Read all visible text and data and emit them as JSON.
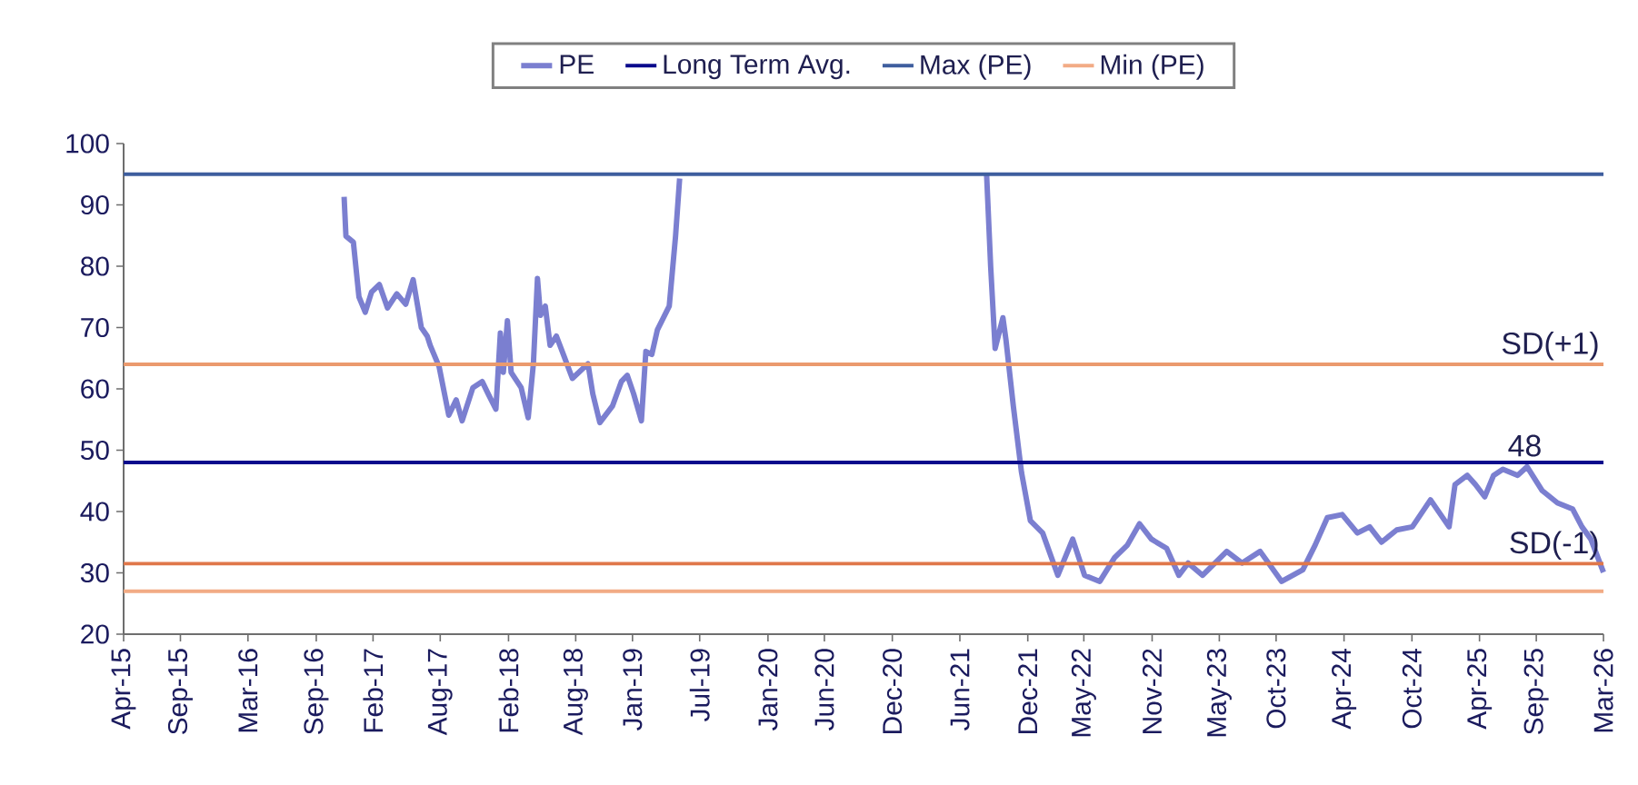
{
  "chart_data": {
    "type": "line",
    "legend": "top",
    "xlim": [
      "2015-04-01",
      "2026-03-01"
    ],
    "ylim": [
      20,
      100
    ],
    "yticks": [
      20,
      30,
      40,
      50,
      60,
      70,
      80,
      90,
      100
    ],
    "xticks": [
      {
        "value": "2015-04-01",
        "label": "Apr-15"
      },
      {
        "value": "2015-09-01",
        "label": "Sep-15"
      },
      {
        "value": "2016-03-01",
        "label": "Mar-16"
      },
      {
        "value": "2016-09-01",
        "label": "Sep-16"
      },
      {
        "value": "2017-02-01",
        "label": "Feb-17"
      },
      {
        "value": "2017-08-01",
        "label": "Aug-17"
      },
      {
        "value": "2018-02-01",
        "label": "Feb-18"
      },
      {
        "value": "2018-08-01",
        "label": "Aug-18"
      },
      {
        "value": "2019-01-01",
        "label": "Jan-19"
      },
      {
        "value": "2019-07-01",
        "label": "Jul-19"
      },
      {
        "value": "2020-01-01",
        "label": "Jan-20"
      },
      {
        "value": "2020-06-01",
        "label": "Jun-20"
      },
      {
        "value": "2020-12-01",
        "label": "Dec-20"
      },
      {
        "value": "2021-06-01",
        "label": "Jun-21"
      },
      {
        "value": "2021-12-01",
        "label": "Dec-21"
      },
      {
        "value": "2022-05-01",
        "label": "May-22"
      },
      {
        "value": "2022-11-01",
        "label": "Nov-22"
      },
      {
        "value": "2023-05-01",
        "label": "May-23"
      },
      {
        "value": "2023-10-01",
        "label": "Oct-23"
      },
      {
        "value": "2024-04-01",
        "label": "Apr-24"
      },
      {
        "value": "2024-10-01",
        "label": "Oct-24"
      },
      {
        "value": "2025-04-01",
        "label": "Apr-25"
      },
      {
        "value": "2025-09-01",
        "label": "Sep-25"
      },
      {
        "value": "2026-03-01",
        "label": "Mar-26"
      }
    ],
    "series": [
      {
        "name": "PE",
        "color": "#7b7fd0",
        "x": [
          "2016-11-15",
          "2016-11-20",
          "2016-12-10",
          "2016-12-25",
          "2017-01-11",
          "2017-01-28",
          "2017-02-18",
          "2017-03-12",
          "2017-04-06",
          "2017-04-30",
          "2017-05-20",
          "2017-06-11",
          "2017-06-27",
          "2017-07-05",
          "2017-07-29",
          "2017-08-24",
          "2017-09-13",
          "2017-09-29",
          "2017-10-28",
          "2017-11-22",
          "2017-12-08",
          "2017-12-29",
          "2018-01-10",
          "2018-01-18",
          "2018-01-29",
          "2018-02-08",
          "2018-03-07",
          "2018-03-26",
          "2018-04-09",
          "2018-04-20",
          "2018-04-28",
          "2018-05-11",
          "2018-05-24",
          "2018-06-10",
          "2018-07-02",
          "2018-07-23",
          "2018-09-03",
          "2018-09-16",
          "2018-10-05",
          "2018-11-08",
          "2018-12-02",
          "2018-12-18",
          "2019-01-04",
          "2019-01-25",
          "2019-02-06",
          "2019-02-22",
          "2019-03-09",
          "2019-04-10",
          "2019-04-27",
          "2019-05-08",
          "2020-06-01",
          "2021-08-12",
          "2021-08-23",
          "2021-09-04",
          "2021-09-25",
          "2021-10-03",
          "2021-10-23",
          "2021-11-14",
          "2021-12-08",
          "2022-01-10",
          "2022-02-20",
          "2022-04-01",
          "2022-05-03",
          "2022-06-13",
          "2022-07-23",
          "2022-08-26",
          "2022-09-28",
          "2022-10-30",
          "2022-12-10",
          "2023-01-12",
          "2023-02-06",
          "2023-03-17",
          "2023-05-21",
          "2023-07-01",
          "2023-08-19",
          "2023-10-16",
          "2023-12-12",
          "2024-01-14",
          "2024-02-16",
          "2024-03-27",
          "2024-05-07",
          "2024-06-09",
          "2024-07-11",
          "2024-08-21",
          "2024-10-02",
          "2024-11-20",
          "2025-01-09",
          "2025-01-25",
          "2025-02-27",
          "2025-03-21",
          "2025-04-15",
          "2025-05-09",
          "2025-06-03",
          "2025-07-13",
          "2025-08-07",
          "2025-09-17",
          "2025-10-28",
          "2025-12-08",
          "2026-01-02",
          "2026-01-26",
          "2026-03-01"
        ],
        "values": [
          91.3,
          84.9,
          83.9,
          75,
          72.5,
          75.8,
          77,
          73.2,
          75.5,
          73.8,
          77.8,
          70,
          68.6,
          67.1,
          63.6,
          55.7,
          58.2,
          54.8,
          60.2,
          61.2,
          59.2,
          56.7,
          69.1,
          62.7,
          71.1,
          62.7,
          60.2,
          55.3,
          64.1,
          78,
          72,
          73.5,
          67.1,
          68.6,
          65.1,
          61.7,
          64.1,
          59.2,
          54.5,
          57.2,
          61.2,
          62.2,
          59.2,
          54.8,
          66.1,
          65.6,
          69.6,
          73.5,
          84.9,
          94.3,
          null,
          95,
          79.9,
          66.6,
          71.6,
          68.1,
          57.2,
          46.4,
          38.5,
          36.5,
          29.6,
          35.5,
          29.6,
          28.6,
          32.5,
          34.5,
          38,
          35.5,
          34,
          29.6,
          31.6,
          29.6,
          33.5,
          31.6,
          33.5,
          28.6,
          30.5,
          34.5,
          39,
          39.5,
          36.5,
          37.5,
          35,
          37,
          37.5,
          41.9,
          37.5,
          44.4,
          45.9,
          44.4,
          42.4,
          45.9,
          46.9,
          45.9,
          47.3,
          43.4,
          41.4,
          40.4,
          37.5,
          35.5,
          30.1
        ]
      },
      {
        "name": "Long Term Avg.",
        "color": "#0a0a8c",
        "x": [
          "2015-04-01",
          "2026-03-01"
        ],
        "values": [
          48,
          48
        ]
      },
      {
        "name": "Max (PE)",
        "color": "#3e5e9e",
        "x": [
          "2015-04-01",
          "2026-03-01"
        ],
        "values": [
          95,
          95
        ]
      },
      {
        "name": "Min (PE)",
        "color": "#f2ab85",
        "x": [
          "2015-04-01",
          "2026-03-01"
        ],
        "values": [
          27,
          27
        ]
      }
    ],
    "ref_lines": [
      {
        "axis": "y",
        "value": 64,
        "label": "SD(+1)",
        "color": "#eb9a6e"
      },
      {
        "axis": "y",
        "value": 31.5,
        "label": "SD(-1)",
        "color": "#e0774a"
      }
    ],
    "annotations": [
      {
        "text": "48",
        "x": "2025-08-01",
        "y": 48
      }
    ]
  }
}
